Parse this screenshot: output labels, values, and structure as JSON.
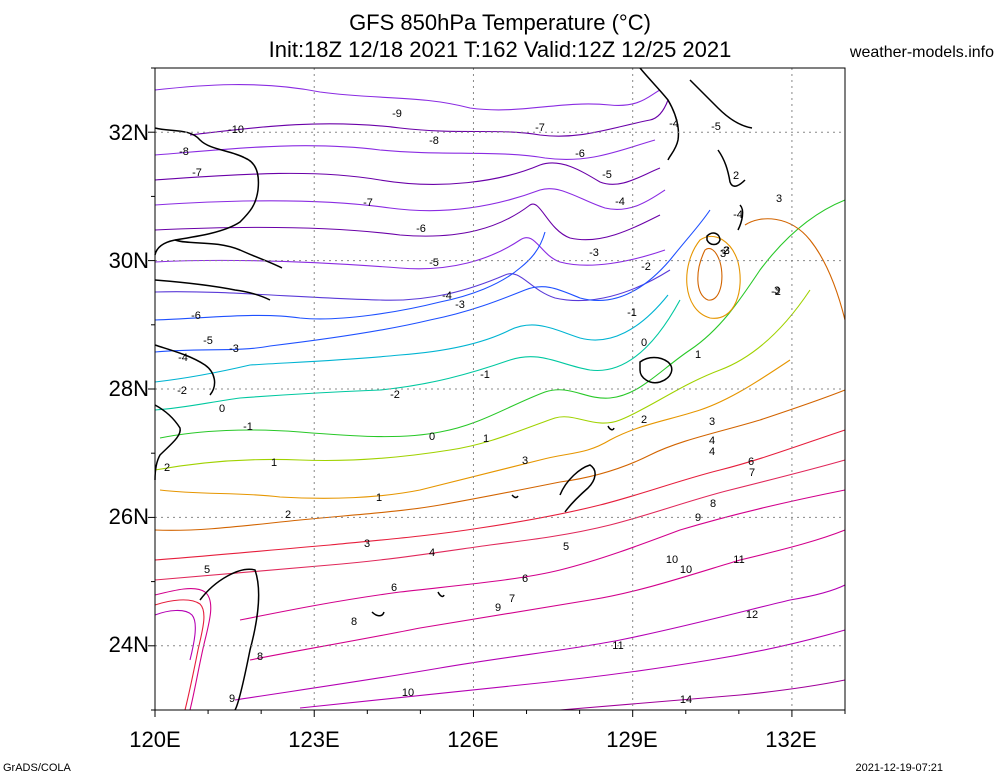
{
  "header": {
    "title_line1": "GFS 850hPa Temperature (°C)",
    "title_line2": "Init:18Z 12/18 2021 T:162 Valid:12Z 12/25 2021",
    "site": "weather-models.info"
  },
  "axes": {
    "lat_labels": [
      "32N",
      "30N",
      "28N",
      "26N",
      "24N"
    ],
    "lon_labels": [
      "120E",
      "123E",
      "126E",
      "129E",
      "132E"
    ]
  },
  "footer": {
    "left": "GrADS/COLA",
    "right": "2021-12-19-07:21"
  },
  "map": {
    "projection": "lat-lon",
    "lon_range": [
      120,
      133
    ],
    "lat_range": [
      23,
      33
    ],
    "grid": "dotted",
    "contour_labels": [
      "-10",
      "-9",
      "-8",
      "-8",
      "-7",
      "-7",
      "-7",
      "-6",
      "-6",
      "-6",
      "-5",
      "-5",
      "-5",
      "-5",
      "-4",
      "-4",
      "-4",
      "-4",
      "-4",
      "-3",
      "-3",
      "-3",
      "-3",
      "-2",
      "-2",
      "-2",
      "-2",
      "-1",
      "-1",
      "-1",
      "0",
      "0",
      "0",
      "1",
      "1",
      "1",
      "1",
      "2",
      "2",
      "2",
      "2",
      "2",
      "3",
      "3",
      "3",
      "3",
      "3",
      "3",
      "4",
      "4",
      "4",
      "5",
      "5",
      "6",
      "6",
      "6",
      "7",
      "7",
      "8",
      "8",
      "8",
      "9",
      "9",
      "9",
      "10",
      "10",
      "10",
      "11",
      "11",
      "12",
      "14"
    ],
    "colors": {
      "cold_violet": "#8a2be2",
      "cold_purple": "#6a00a8",
      "blue": "#1e50ff",
      "cyan": "#00b4d2",
      "teal": "#00c8a0",
      "green": "#28c828",
      "yellowgreen": "#a0d200",
      "orange": "#e69600",
      "dark_orange": "#d26400",
      "red": "#e61e3c",
      "magenta": "#d2008c",
      "purple_hot": "#b400b4"
    }
  }
}
